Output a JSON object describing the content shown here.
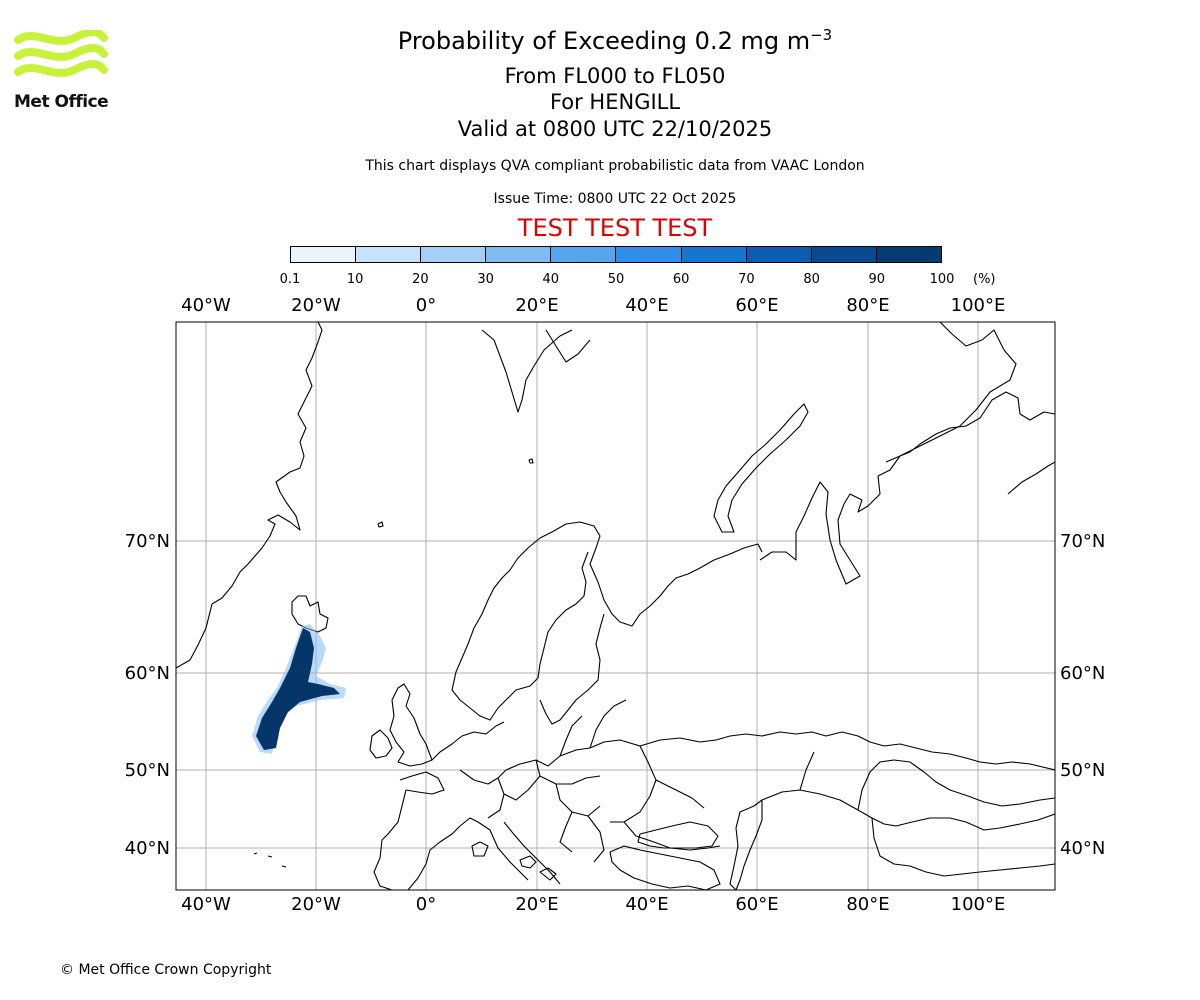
{
  "title": {
    "main_prefix": "Probability of Exceeding 0.2 mg m",
    "main_exponent": "−3",
    "levels": "From FL000 to FL050",
    "location": "For HENGILL",
    "valid": "Valid at 0800 UTC 22/10/2025",
    "description": "This chart displays QVA compliant probabilistic data from VAAC London",
    "issue_time": "Issue Time: 0800 UTC 22 Oct 2025",
    "test_banner": "TEST TEST TEST"
  },
  "logo": {
    "name": "Met Office",
    "color": "#c8f23a"
  },
  "colorbar": {
    "ticks": [
      "0.1",
      "10",
      "20",
      "30",
      "40",
      "50",
      "60",
      "70",
      "80",
      "90",
      "100"
    ],
    "unit": "(%)",
    "colors": [
      "#eaf4fd",
      "#c7e2fa",
      "#a4cff6",
      "#7fbcf2",
      "#56a6ee",
      "#2f8fe8",
      "#1675cf",
      "#0a5db0",
      "#064a8f",
      "#033b72",
      "#022b57"
    ]
  },
  "map": {
    "lon_labels": [
      "40°W",
      "20°W",
      "0°",
      "20°E",
      "40°E",
      "60°E",
      "80°E",
      "100°E"
    ],
    "lat_labels": [
      "70°N",
      "60°N",
      "50°N",
      "40°N"
    ],
    "gridlines": true,
    "ash_plume_color": "#06356a"
  },
  "copyright": "© Met Office Crown Copyright"
}
